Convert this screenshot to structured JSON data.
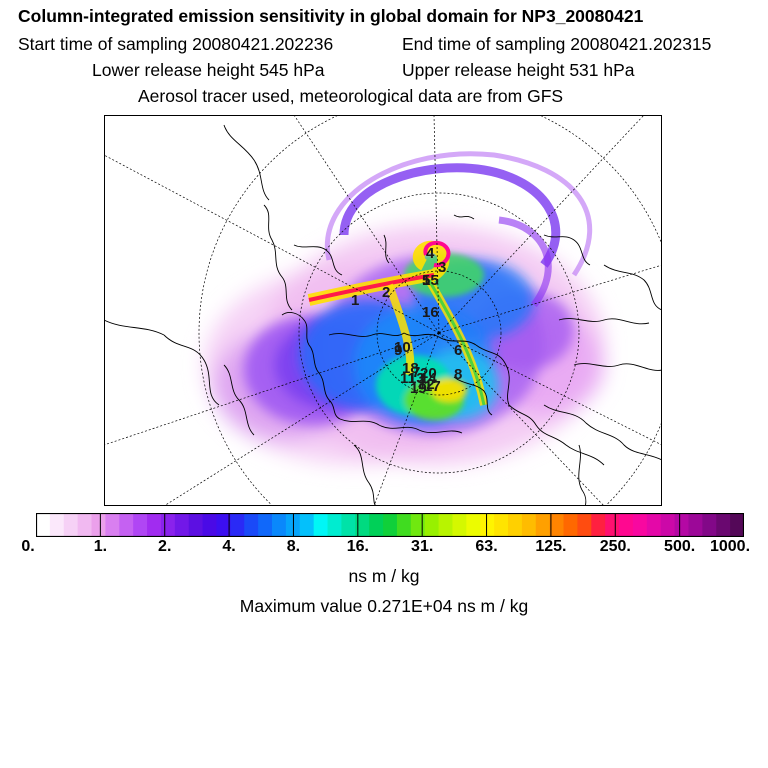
{
  "header": {
    "title": "Column-integrated emission sensitivity in global domain for NP3_20080421",
    "start_time": "Start time of sampling 20080421.202236",
    "end_time": "End time of sampling 20080421.202315",
    "lower_release": "Lower release height  545 hPa",
    "upper_release": "Upper release height  531 hPa",
    "tracer_note": "Aerosol tracer used, meteorological data are from GFS"
  },
  "map": {
    "projection": "north-polar-stereographic",
    "labels": [
      "1",
      "2",
      "3",
      "4",
      "5",
      "6",
      "7",
      "8",
      "9",
      "10",
      "11",
      "12",
      "13",
      "14",
      "15",
      "16",
      "17",
      "18",
      "19",
      "20"
    ]
  },
  "legend": {
    "ticks": [
      "0.",
      "1.",
      "2.",
      "4.",
      "8.",
      "16.",
      "31.",
      "63.",
      "125.",
      "250.",
      "500.",
      "1000."
    ],
    "colors": [
      "#ffffff",
      "#fbe8fb",
      "#f6d1f6",
      "#f1b9f1",
      "#eba0eb",
      "#d97ff0",
      "#c561f2",
      "#b046f4",
      "#a12cf0",
      "#8a22ec",
      "#7218e8",
      "#5c10e2",
      "#4a0ae6",
      "#3c0ff0",
      "#2a2af6",
      "#1a4af8",
      "#1068fa",
      "#0a88fb",
      "#06a4fb",
      "#04c0fb",
      "#00f6f6",
      "#00ecd0",
      "#00e2a8",
      "#00da80",
      "#00d058",
      "#10d03a",
      "#40dc20",
      "#70e810",
      "#98f000",
      "#b8f400",
      "#d4f800",
      "#ecfc00",
      "#fff400",
      "#ffe400",
      "#ffd000",
      "#ffbc00",
      "#ffa000",
      "#ff8400",
      "#ff6800",
      "#ff4c10",
      "#ff2040",
      "#ff1070",
      "#ff0890",
      "#f808a0",
      "#e408a8",
      "#cc08a8",
      "#b408a4",
      "#9c0898",
      "#820888",
      "#6a0870",
      "#540858"
    ],
    "units": "ns m / kg",
    "max_value": "Maximum value  0.271E+04 ns m / kg"
  }
}
